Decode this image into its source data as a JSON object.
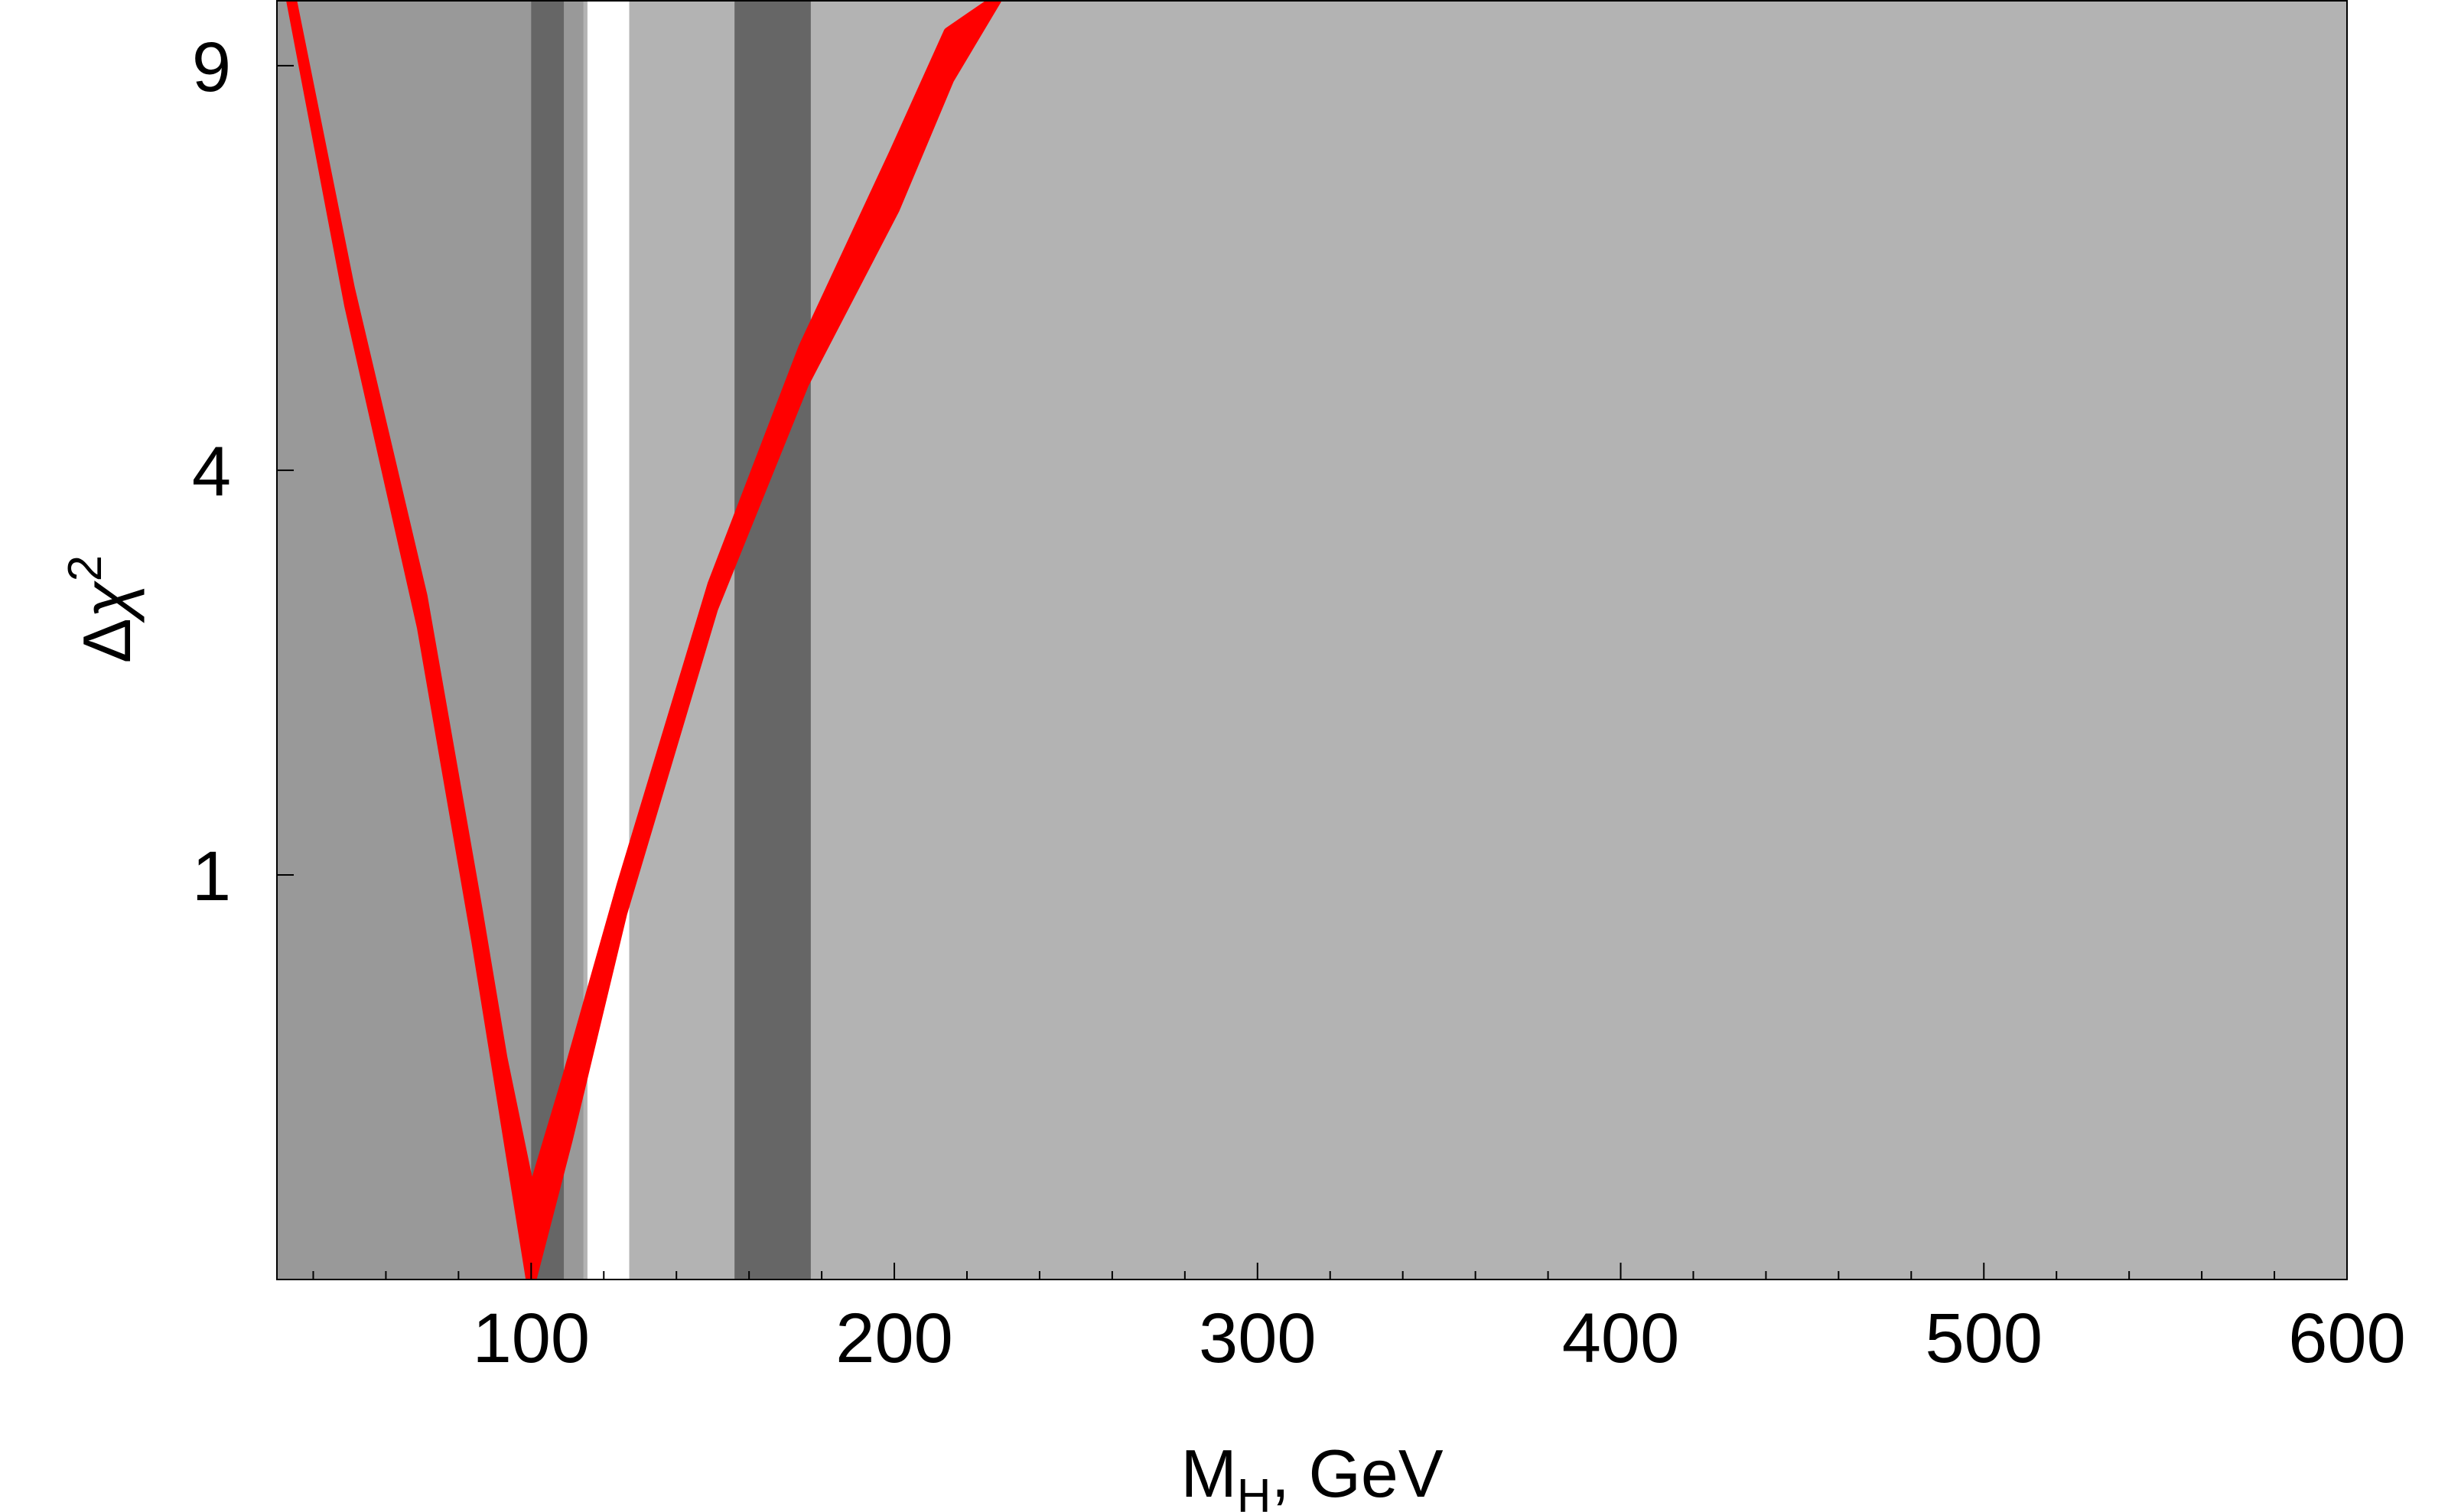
{
  "chart_data": {
    "type": "line",
    "title": "",
    "xlabel": {
      "main": "M",
      "sub": "H",
      "rest": ", GeV"
    },
    "ylabel": {
      "delta": "Δ",
      "chi": "χ",
      "sup": "2"
    },
    "xlim": [
      30,
      600
    ],
    "ylim": [
      0,
      10
    ],
    "y_scale": "sqrt",
    "x_ticks": [
      100,
      200,
      300,
      400,
      500,
      600
    ],
    "x_tick_labels": [
      "100",
      "200",
      "300",
      "400",
      "500",
      "600"
    ],
    "y_ticks": [
      1,
      4,
      9
    ],
    "y_tick_labels": [
      "1",
      "4",
      "9"
    ],
    "grid": false,
    "legend": "none",
    "background_color": "#b3b3b3",
    "regions": [
      {
        "x": [
          30,
          114.4
        ],
        "color": "#999999"
      },
      {
        "x": [
          100,
          109
        ],
        "color": "#666666"
      },
      {
        "x": [
          114.4,
          115.5
        ],
        "color": "#b3b3b3"
      },
      {
        "x": [
          115.5,
          127
        ],
        "color": "#ffffff"
      },
      {
        "x": [
          156,
          177
        ],
        "color": "#666666"
      }
    ],
    "series": [
      {
        "color": "#ff0000",
        "band": true,
        "x": [
          34,
          50,
          70,
          85,
          92,
          100,
          110,
          125,
          150,
          175,
          200,
          215,
          228
        ],
        "y_lower": [
          10,
          5.8,
          2.6,
          0.7,
          0.2,
          0.0,
          0.12,
          0.82,
          2.75,
          4.9,
          7.0,
          8.8,
          10
        ],
        "y_upper": [
          10,
          6.0,
          2.85,
          0.85,
          0.3,
          0.04,
          0.25,
          0.95,
          2.95,
          5.3,
          7.75,
          9.5,
          10
        ]
      }
    ]
  }
}
